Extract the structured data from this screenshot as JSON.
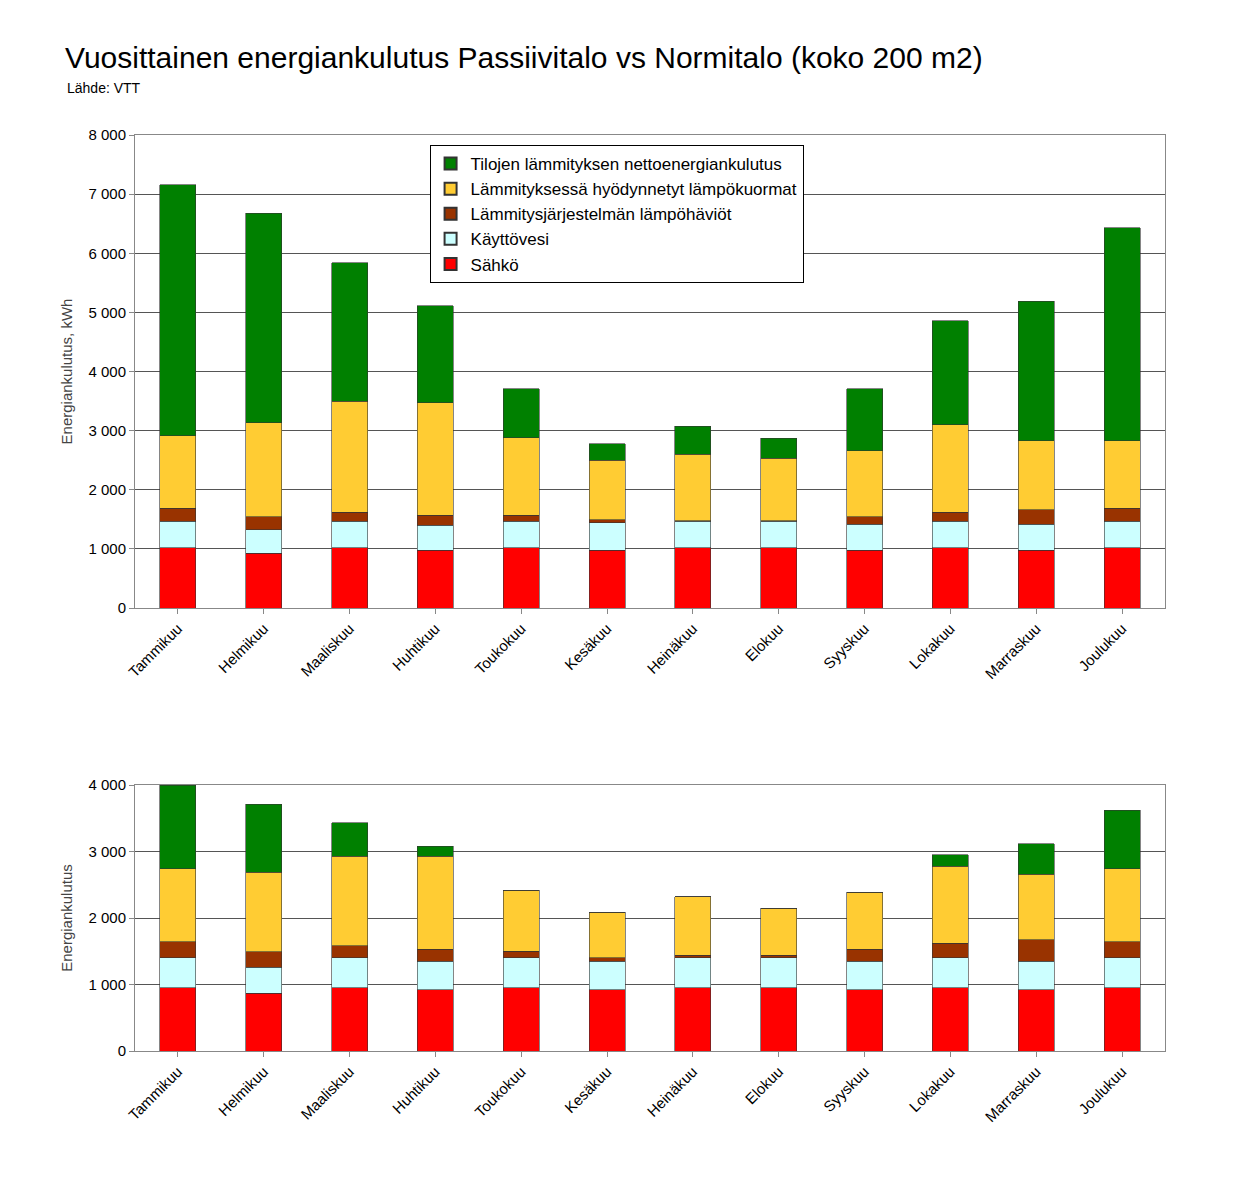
{
  "chart_data": [
    {
      "type": "bar",
      "title": "Vuosittainen energiankulutus Passiivitalo vs Normitalo (koko 200 m2)",
      "subtitle": "Lähde: VTT",
      "y_label": "Energiankulutus, kWh",
      "stacked": true,
      "grid": true,
      "legend": "top",
      "categories": [
        "Tammikuu",
        "Helmikuu",
        "Maaliskuu",
        "Huhtikuu",
        "Toukokuu",
        "Kesäkuu",
        "Heinäkuu",
        "Elokuu",
        "Syyskuu",
        "Lokakuu",
        "Marraskuu",
        "Joulukuu"
      ],
      "ylim": [
        0,
        8000
      ],
      "yticks": [
        0,
        {
          "value": 1000,
          "label": "1 000"
        },
        {
          "value": 2000,
          "label": "2 000"
        },
        {
          "value": 3000,
          "label": "3 000"
        },
        {
          "value": 4000,
          "label": "4 000"
        },
        {
          "value": 5000,
          "label": "5 000"
        },
        {
          "value": 6000,
          "label": "6 000"
        },
        {
          "value": 7000,
          "label": "7 000"
        },
        {
          "value": 8000,
          "label": "8 000"
        }
      ],
      "series": [
        {
          "name": "Sähkö",
          "color": "#ff0000",
          "values": [
            1020,
            930,
            1020,
            980,
            1020,
            980,
            1020,
            1020,
            980,
            1020,
            980,
            1020
          ]
        },
        {
          "name": "Käyttövesi",
          "color": "#ccffff",
          "values": [
            450,
            390,
            450,
            420,
            450,
            460,
            450,
            450,
            440,
            450,
            440,
            450
          ]
        },
        {
          "name": "Lämmitysjärjestelmän lämpöhäviöt",
          "color": "#993300",
          "values": [
            220,
            220,
            150,
            170,
            100,
            50,
            10,
            10,
            120,
            150,
            240,
            220
          ]
        },
        {
          "name": "Lämmityksessä hyödynnetyt lämpökuormat",
          "color": "#ffcc33",
          "values": [
            1220,
            1590,
            1880,
            1900,
            1310,
            1010,
            1120,
            1050,
            1120,
            1480,
            1170,
            1140
          ]
        },
        {
          "name": "Tilojen lämmityksen nettoenergiankulutus",
          "color": "#008000",
          "values": [
            4250,
            3550,
            2340,
            1640,
            830,
            280,
            470,
            340,
            1050,
            1760,
            2360,
            3600
          ]
        }
      ]
    },
    {
      "type": "bar",
      "y_label": "Energiankulutus",
      "stacked": true,
      "grid": true,
      "categories": [
        "Tammikuu",
        "Helmikuu",
        "Maaliskuu",
        "Huhtikuu",
        "Toukokuu",
        "Kesäkuu",
        "Heinäkuu",
        "Elokuu",
        "Syyskuu",
        "Lokakuu",
        "Marraskuu",
        "Joulukuu"
      ],
      "ylim": [
        0,
        4000
      ],
      "yticks": [
        0,
        {
          "value": 1000,
          "label": "1 000"
        },
        {
          "value": 2000,
          "label": "2 000"
        },
        {
          "value": 3000,
          "label": "3 000"
        },
        {
          "value": 4000,
          "label": "4 000"
        }
      ],
      "series": [
        {
          "name": "Sähkö",
          "color": "#ff0000",
          "values": [
            950,
            870,
            950,
            920,
            950,
            920,
            950,
            950,
            920,
            950,
            920,
            950
          ]
        },
        {
          "name": "Käyttövesi",
          "color": "#ccffff",
          "values": [
            450,
            390,
            450,
            430,
            450,
            430,
            450,
            450,
            430,
            450,
            430,
            450
          ]
        },
        {
          "name": "Lämmitysjärjestelmän lämpöhäviöt",
          "color": "#993300",
          "values": [
            240,
            230,
            180,
            180,
            100,
            50,
            40,
            40,
            180,
            220,
            320,
            240
          ]
        },
        {
          "name": "Lämmityksessä hyödynnetyt lämpökuormat",
          "color": "#ffcc33",
          "values": [
            1100,
            1200,
            1350,
            1400,
            920,
            690,
            880,
            710,
            860,
            1160,
            990,
            1100
          ]
        },
        {
          "name": "Tilojen lämmityksen nettoenergiankulutus",
          "color": "#008000",
          "values": [
            1260,
            1020,
            500,
            150,
            0,
            0,
            0,
            0,
            0,
            170,
            460,
            880
          ]
        }
      ]
    }
  ]
}
